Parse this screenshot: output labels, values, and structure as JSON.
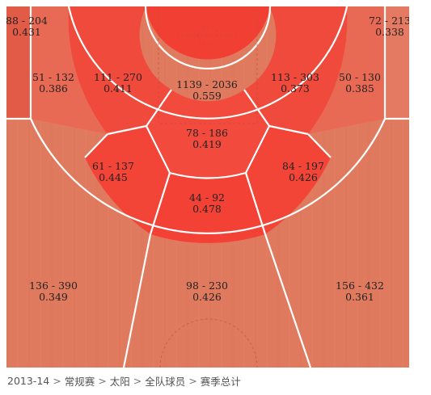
{
  "breadcrumb": [
    "2013-14",
    "常规赛",
    "太阳",
    "全队球员",
    "赛季总计"
  ],
  "colors": {
    "court_wood": "#e07a5e",
    "zone_high": "#f0463a",
    "line": "#ffffff"
  },
  "chart_data": {
    "type": "heatmap",
    "title": "",
    "zones": [
      {
        "id": "left-corner-3",
        "made_attempts": "88 - 204",
        "pct": "0.431",
        "value": 0.431
      },
      {
        "id": "right-corner-3",
        "made_attempts": "72 - 213",
        "pct": "0.338",
        "value": 0.338
      },
      {
        "id": "left-wing-mid",
        "made_attempts": "51 - 132",
        "pct": "0.386",
        "value": 0.386
      },
      {
        "id": "left-elbow-mid",
        "made_attempts": "111 - 270",
        "pct": "0.411",
        "value": 0.411
      },
      {
        "id": "restricted-area",
        "made_attempts": "1139 - 2036",
        "pct": "0.559",
        "value": 0.559
      },
      {
        "id": "right-elbow-mid",
        "made_attempts": "113 - 303",
        "pct": "0.373",
        "value": 0.373
      },
      {
        "id": "right-wing-mid",
        "made_attempts": "50 - 130",
        "pct": "0.385",
        "value": 0.385
      },
      {
        "id": "paint",
        "made_attempts": "78 - 186",
        "pct": "0.419",
        "value": 0.419
      },
      {
        "id": "left-long-mid",
        "made_attempts": "61 - 137",
        "pct": "0.445",
        "value": 0.445
      },
      {
        "id": "right-long-mid",
        "made_attempts": "84 - 197",
        "pct": "0.426",
        "value": 0.426
      },
      {
        "id": "top-long-mid",
        "made_attempts": "44 - 92",
        "pct": "0.478",
        "value": 0.478
      },
      {
        "id": "left-wing-3",
        "made_attempts": "136 - 390",
        "pct": "0.349",
        "value": 0.349
      },
      {
        "id": "top-key-3",
        "made_attempts": "98 - 230",
        "pct": "0.426",
        "value": 0.426
      },
      {
        "id": "right-wing-3",
        "made_attempts": "156 - 432",
        "pct": "0.361",
        "value": 0.361
      }
    ]
  }
}
